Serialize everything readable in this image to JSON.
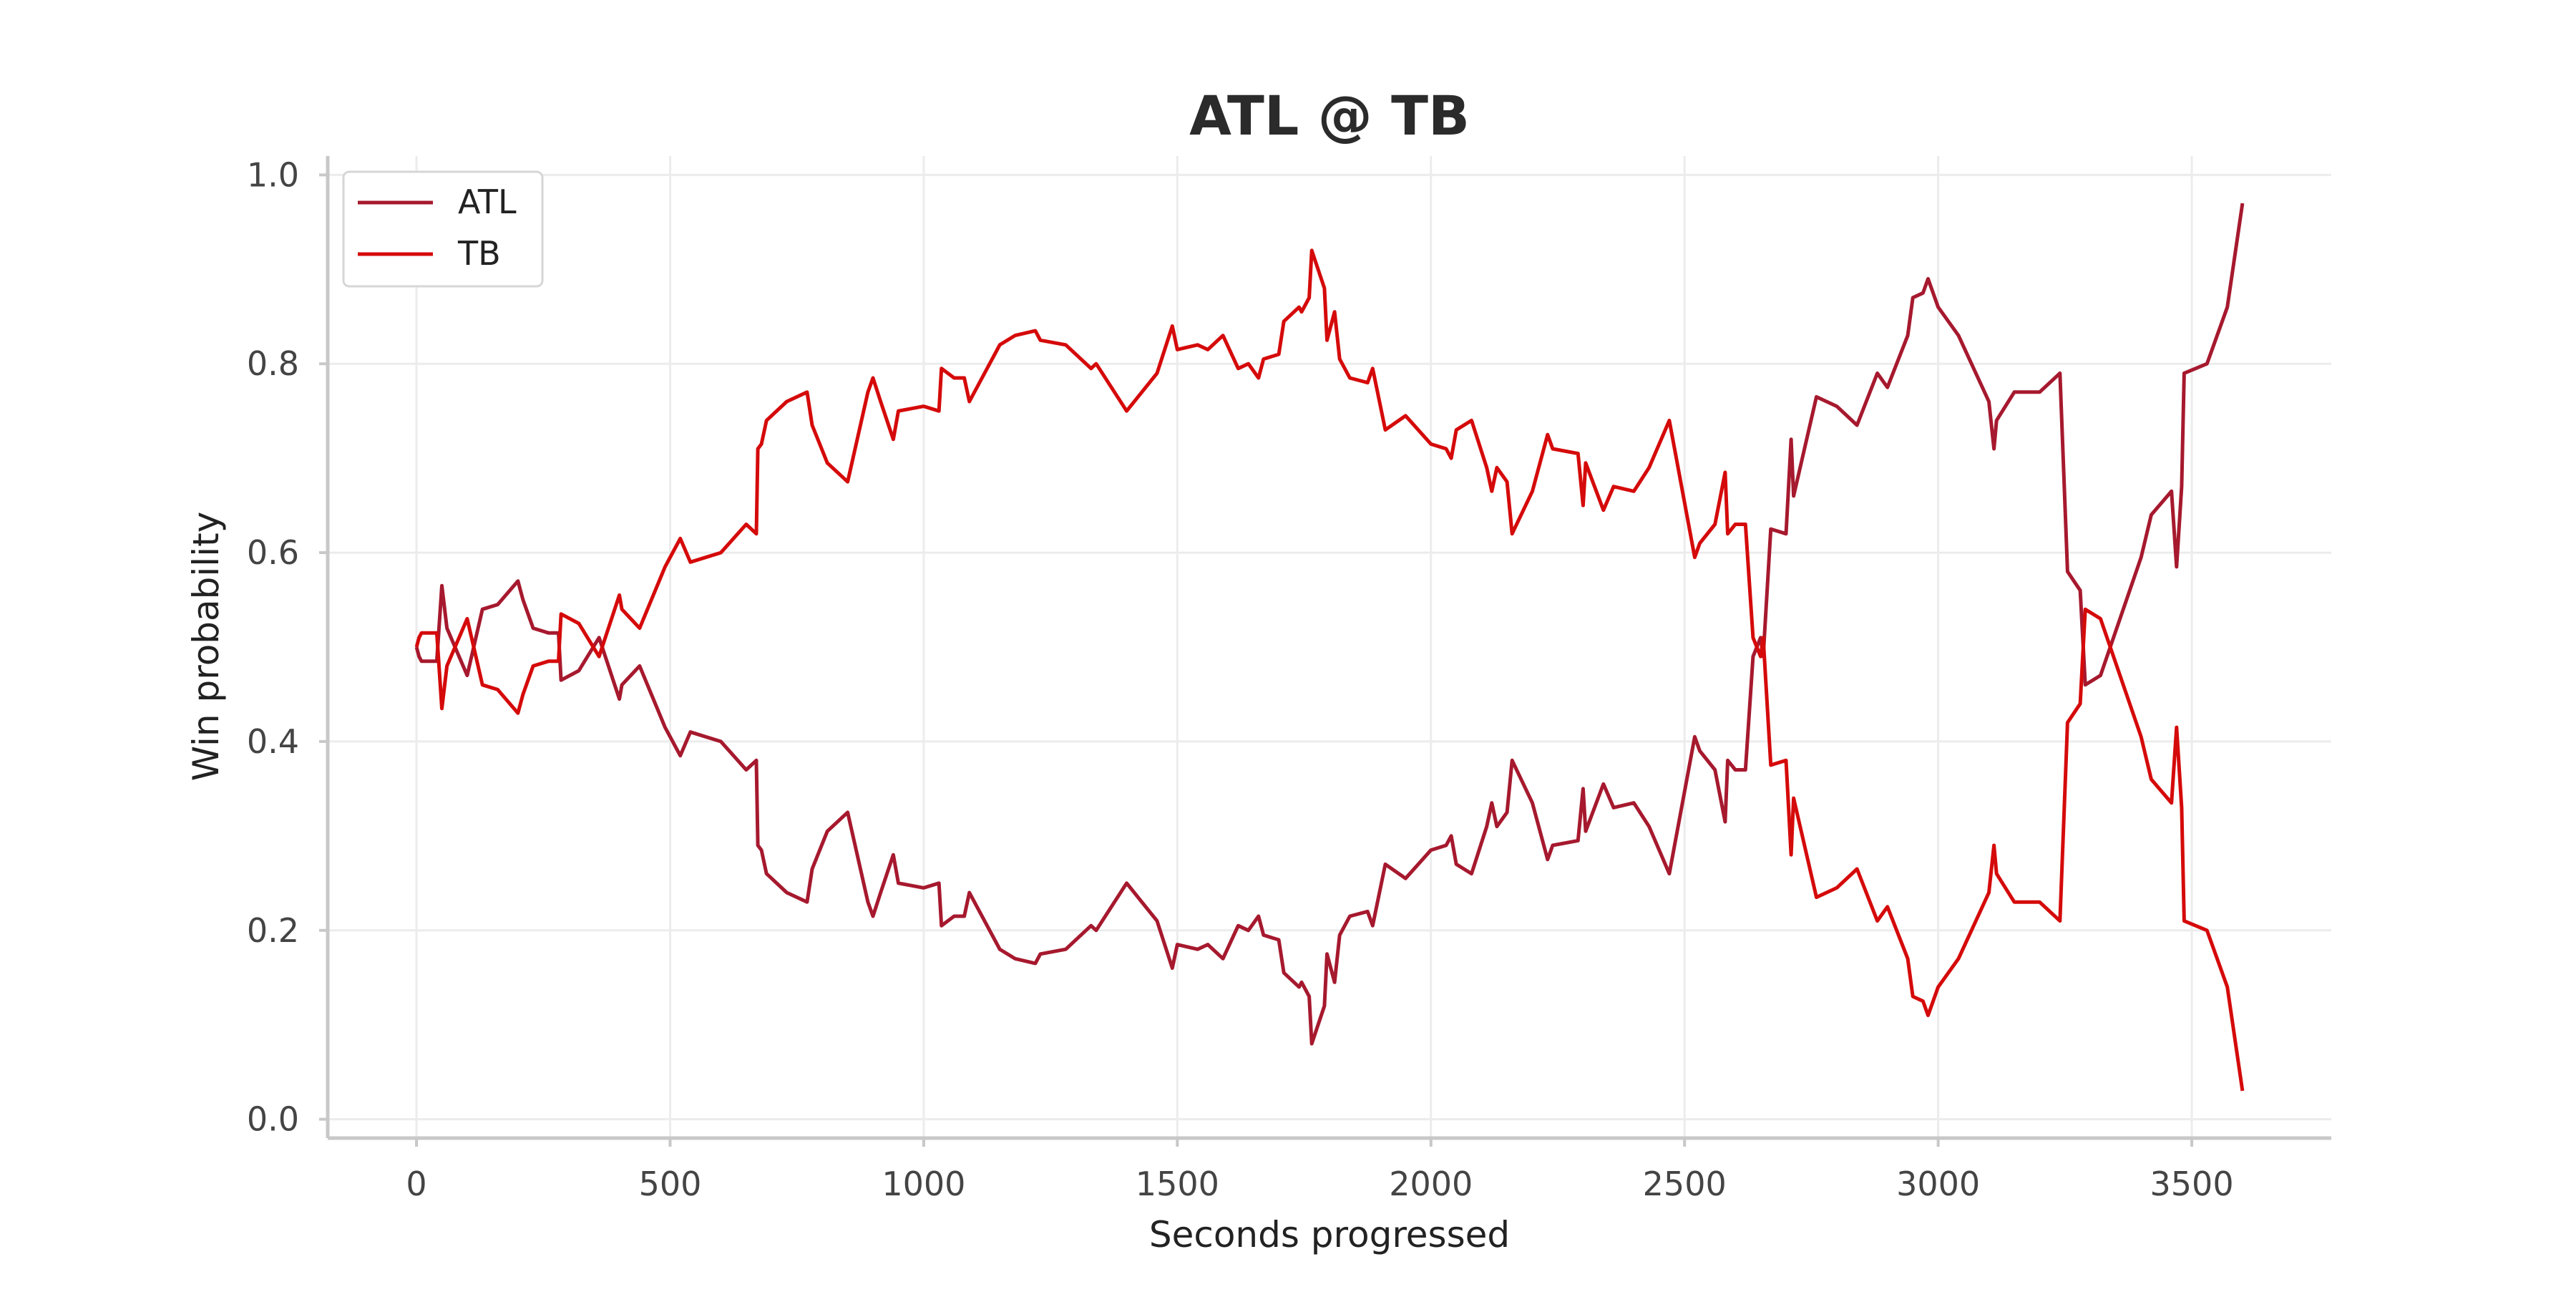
{
  "chart_data": {
    "type": "line",
    "title": "ATL @ TB",
    "xlabel": "Seconds progressed",
    "ylabel": "Win probability",
    "xlim": [
      -175,
      3775
    ],
    "ylim": [
      -0.02,
      1.02
    ],
    "x_ticks": [
      "0",
      "500",
      "1000",
      "1500",
      "2000",
      "2500",
      "3000",
      "3500"
    ],
    "y_ticks": [
      "0.0",
      "0.2",
      "0.4",
      "0.6",
      "0.8",
      "1.0"
    ],
    "grid": true,
    "legend_position": "top-left",
    "series": [
      {
        "name": "ATL",
        "color": "#a6192e",
        "points": [
          [
            0,
            0.5
          ],
          [
            5,
            0.49
          ],
          [
            10,
            0.485
          ],
          [
            40,
            0.485
          ],
          [
            50,
            0.565
          ],
          [
            60,
            0.52
          ],
          [
            100,
            0.47
          ],
          [
            130,
            0.54
          ],
          [
            160,
            0.545
          ],
          [
            200,
            0.57
          ],
          [
            210,
            0.55
          ],
          [
            230,
            0.52
          ],
          [
            260,
            0.515
          ],
          [
            280,
            0.515
          ],
          [
            285,
            0.465
          ],
          [
            320,
            0.475
          ],
          [
            360,
            0.51
          ],
          [
            400,
            0.445
          ],
          [
            405,
            0.46
          ],
          [
            440,
            0.48
          ],
          [
            490,
            0.415
          ],
          [
            520,
            0.385
          ],
          [
            540,
            0.41
          ],
          [
            600,
            0.4
          ],
          [
            650,
            0.37
          ],
          [
            670,
            0.38
          ],
          [
            673,
            0.29
          ],
          [
            680,
            0.285
          ],
          [
            690,
            0.26
          ],
          [
            730,
            0.24
          ],
          [
            770,
            0.23
          ],
          [
            780,
            0.265
          ],
          [
            810,
            0.305
          ],
          [
            850,
            0.325
          ],
          [
            890,
            0.23
          ],
          [
            900,
            0.215
          ],
          [
            915,
            0.24
          ],
          [
            940,
            0.28
          ],
          [
            950,
            0.25
          ],
          [
            1000,
            0.245
          ],
          [
            1030,
            0.25
          ],
          [
            1035,
            0.205
          ],
          [
            1060,
            0.215
          ],
          [
            1080,
            0.215
          ],
          [
            1090,
            0.24
          ],
          [
            1150,
            0.18
          ],
          [
            1180,
            0.17
          ],
          [
            1220,
            0.165
          ],
          [
            1230,
            0.175
          ],
          [
            1280,
            0.18
          ],
          [
            1330,
            0.205
          ],
          [
            1340,
            0.2
          ],
          [
            1400,
            0.25
          ],
          [
            1460,
            0.21
          ],
          [
            1490,
            0.16
          ],
          [
            1500,
            0.185
          ],
          [
            1540,
            0.18
          ],
          [
            1560,
            0.185
          ],
          [
            1590,
            0.17
          ],
          [
            1620,
            0.205
          ],
          [
            1640,
            0.2
          ],
          [
            1660,
            0.215
          ],
          [
            1670,
            0.195
          ],
          [
            1700,
            0.19
          ],
          [
            1710,
            0.155
          ],
          [
            1740,
            0.14
          ],
          [
            1745,
            0.145
          ],
          [
            1760,
            0.13
          ],
          [
            1765,
            0.08
          ],
          [
            1790,
            0.12
          ],
          [
            1795,
            0.175
          ],
          [
            1810,
            0.145
          ],
          [
            1820,
            0.195
          ],
          [
            1840,
            0.215
          ],
          [
            1875,
            0.22
          ],
          [
            1885,
            0.205
          ],
          [
            1910,
            0.27
          ],
          [
            1950,
            0.255
          ],
          [
            2000,
            0.285
          ],
          [
            2030,
            0.29
          ],
          [
            2040,
            0.3
          ],
          [
            2050,
            0.27
          ],
          [
            2080,
            0.26
          ],
          [
            2110,
            0.31
          ],
          [
            2120,
            0.335
          ],
          [
            2130,
            0.31
          ],
          [
            2150,
            0.325
          ],
          [
            2160,
            0.38
          ],
          [
            2200,
            0.335
          ],
          [
            2230,
            0.275
          ],
          [
            2240,
            0.29
          ],
          [
            2290,
            0.295
          ],
          [
            2300,
            0.35
          ],
          [
            2305,
            0.305
          ],
          [
            2340,
            0.355
          ],
          [
            2360,
            0.33
          ],
          [
            2400,
            0.335
          ],
          [
            2430,
            0.31
          ],
          [
            2470,
            0.26
          ],
          [
            2520,
            0.405
          ],
          [
            2530,
            0.39
          ],
          [
            2560,
            0.37
          ],
          [
            2580,
            0.315
          ],
          [
            2585,
            0.38
          ],
          [
            2600,
            0.37
          ],
          [
            2620,
            0.37
          ],
          [
            2635,
            0.49
          ],
          [
            2650,
            0.51
          ],
          [
            2655,
            0.49
          ],
          [
            2670,
            0.625
          ],
          [
            2700,
            0.62
          ],
          [
            2710,
            0.72
          ],
          [
            2715,
            0.66
          ],
          [
            2760,
            0.765
          ],
          [
            2800,
            0.755
          ],
          [
            2840,
            0.735
          ],
          [
            2880,
            0.79
          ],
          [
            2900,
            0.775
          ],
          [
            2940,
            0.83
          ],
          [
            2950,
            0.87
          ],
          [
            2970,
            0.875
          ],
          [
            2980,
            0.89
          ],
          [
            3000,
            0.86
          ],
          [
            3040,
            0.83
          ],
          [
            3100,
            0.76
          ],
          [
            3110,
            0.71
          ],
          [
            3115,
            0.74
          ],
          [
            3150,
            0.77
          ],
          [
            3200,
            0.77
          ],
          [
            3240,
            0.79
          ],
          [
            3255,
            0.58
          ],
          [
            3280,
            0.56
          ],
          [
            3290,
            0.46
          ],
          [
            3320,
            0.47
          ],
          [
            3400,
            0.595
          ],
          [
            3420,
            0.64
          ],
          [
            3460,
            0.665
          ],
          [
            3470,
            0.585
          ],
          [
            3480,
            0.67
          ],
          [
            3485,
            0.79
          ],
          [
            3530,
            0.8
          ],
          [
            3570,
            0.86
          ],
          [
            3600,
            0.97
          ]
        ]
      },
      {
        "name": "TB",
        "color": "#d50a0a",
        "points": [
          [
            0,
            0.5
          ],
          [
            5,
            0.51
          ],
          [
            10,
            0.515
          ],
          [
            40,
            0.515
          ],
          [
            50,
            0.435
          ],
          [
            60,
            0.48
          ],
          [
            100,
            0.53
          ],
          [
            130,
            0.46
          ],
          [
            160,
            0.455
          ],
          [
            200,
            0.43
          ],
          [
            210,
            0.45
          ],
          [
            230,
            0.48
          ],
          [
            260,
            0.485
          ],
          [
            280,
            0.485
          ],
          [
            285,
            0.535
          ],
          [
            320,
            0.525
          ],
          [
            360,
            0.49
          ],
          [
            400,
            0.555
          ],
          [
            405,
            0.54
          ],
          [
            440,
            0.52
          ],
          [
            490,
            0.585
          ],
          [
            520,
            0.615
          ],
          [
            540,
            0.59
          ],
          [
            600,
            0.6
          ],
          [
            650,
            0.63
          ],
          [
            670,
            0.62
          ],
          [
            673,
            0.71
          ],
          [
            680,
            0.715
          ],
          [
            690,
            0.74
          ],
          [
            730,
            0.76
          ],
          [
            770,
            0.77
          ],
          [
            780,
            0.735
          ],
          [
            810,
            0.695
          ],
          [
            850,
            0.675
          ],
          [
            890,
            0.77
          ],
          [
            900,
            0.785
          ],
          [
            915,
            0.76
          ],
          [
            940,
            0.72
          ],
          [
            950,
            0.75
          ],
          [
            1000,
            0.755
          ],
          [
            1030,
            0.75
          ],
          [
            1035,
            0.795
          ],
          [
            1060,
            0.785
          ],
          [
            1080,
            0.785
          ],
          [
            1090,
            0.76
          ],
          [
            1150,
            0.82
          ],
          [
            1180,
            0.83
          ],
          [
            1220,
            0.835
          ],
          [
            1230,
            0.825
          ],
          [
            1280,
            0.82
          ],
          [
            1330,
            0.795
          ],
          [
            1340,
            0.8
          ],
          [
            1400,
            0.75
          ],
          [
            1460,
            0.79
          ],
          [
            1490,
            0.84
          ],
          [
            1500,
            0.815
          ],
          [
            1540,
            0.82
          ],
          [
            1560,
            0.815
          ],
          [
            1590,
            0.83
          ],
          [
            1620,
            0.795
          ],
          [
            1640,
            0.8
          ],
          [
            1660,
            0.785
          ],
          [
            1670,
            0.805
          ],
          [
            1700,
            0.81
          ],
          [
            1710,
            0.845
          ],
          [
            1740,
            0.86
          ],
          [
            1745,
            0.855
          ],
          [
            1760,
            0.87
          ],
          [
            1765,
            0.92
          ],
          [
            1790,
            0.88
          ],
          [
            1795,
            0.825
          ],
          [
            1810,
            0.855
          ],
          [
            1820,
            0.805
          ],
          [
            1840,
            0.785
          ],
          [
            1875,
            0.78
          ],
          [
            1885,
            0.795
          ],
          [
            1910,
            0.73
          ],
          [
            1950,
            0.745
          ],
          [
            2000,
            0.715
          ],
          [
            2030,
            0.71
          ],
          [
            2040,
            0.7
          ],
          [
            2050,
            0.73
          ],
          [
            2080,
            0.74
          ],
          [
            2110,
            0.69
          ],
          [
            2120,
            0.665
          ],
          [
            2130,
            0.69
          ],
          [
            2150,
            0.675
          ],
          [
            2160,
            0.62
          ],
          [
            2200,
            0.665
          ],
          [
            2230,
            0.725
          ],
          [
            2240,
            0.71
          ],
          [
            2290,
            0.705
          ],
          [
            2300,
            0.65
          ],
          [
            2305,
            0.695
          ],
          [
            2340,
            0.645
          ],
          [
            2360,
            0.67
          ],
          [
            2400,
            0.665
          ],
          [
            2430,
            0.69
          ],
          [
            2470,
            0.74
          ],
          [
            2520,
            0.595
          ],
          [
            2530,
            0.61
          ],
          [
            2560,
            0.63
          ],
          [
            2580,
            0.685
          ],
          [
            2585,
            0.62
          ],
          [
            2600,
            0.63
          ],
          [
            2620,
            0.63
          ],
          [
            2635,
            0.51
          ],
          [
            2650,
            0.49
          ],
          [
            2655,
            0.51
          ],
          [
            2670,
            0.375
          ],
          [
            2700,
            0.38
          ],
          [
            2710,
            0.28
          ],
          [
            2715,
            0.34
          ],
          [
            2760,
            0.235
          ],
          [
            2800,
            0.245
          ],
          [
            2840,
            0.265
          ],
          [
            2880,
            0.21
          ],
          [
            2900,
            0.225
          ],
          [
            2940,
            0.17
          ],
          [
            2950,
            0.13
          ],
          [
            2970,
            0.125
          ],
          [
            2980,
            0.11
          ],
          [
            3000,
            0.14
          ],
          [
            3040,
            0.17
          ],
          [
            3100,
            0.24
          ],
          [
            3110,
            0.29
          ],
          [
            3115,
            0.26
          ],
          [
            3150,
            0.23
          ],
          [
            3200,
            0.23
          ],
          [
            3240,
            0.21
          ],
          [
            3255,
            0.42
          ],
          [
            3280,
            0.44
          ],
          [
            3290,
            0.54
          ],
          [
            3320,
            0.53
          ],
          [
            3400,
            0.405
          ],
          [
            3420,
            0.36
          ],
          [
            3460,
            0.335
          ],
          [
            3470,
            0.415
          ],
          [
            3480,
            0.33
          ],
          [
            3485,
            0.21
          ],
          [
            3530,
            0.2
          ],
          [
            3570,
            0.14
          ],
          [
            3600,
            0.03
          ]
        ]
      }
    ]
  }
}
